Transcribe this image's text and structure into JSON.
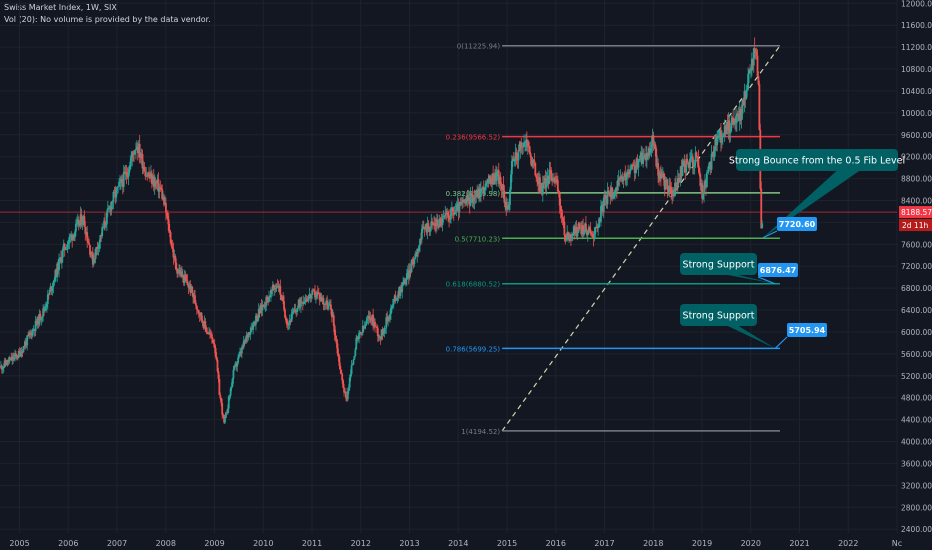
{
  "header": {
    "title": "Swiss Market Index, 1W, SIX",
    "volume_note": "Vol (20): No volume is provided by the data vendor."
  },
  "chart_data": {
    "type": "candlestick",
    "x_axis": {
      "ticks": [
        "2005",
        "2006",
        "2007",
        "2008",
        "2009",
        "2010",
        "2011",
        "2012",
        "2013",
        "2014",
        "2015",
        "2016",
        "2017",
        "2018",
        "2019",
        "2020",
        "2021",
        "2022",
        "Nc"
      ],
      "range": [
        2004.6,
        2023.0
      ]
    },
    "y_axis": {
      "ticks": [
        2400,
        2800,
        3200,
        3600,
        4000,
        4400,
        4800,
        5200,
        5600,
        6000,
        6400,
        6800,
        7200,
        7600,
        8000,
        8400,
        8800,
        9200,
        9600,
        10000,
        10400,
        10800,
        11200,
        11600,
        12000
      ],
      "tick_labels": [
        "2400.00",
        "2800.00",
        "3200.00",
        "3600.00",
        "4000.00",
        "4400.00",
        "4800.00",
        "5200.00",
        "5600.00",
        "6000.00",
        "6400.00",
        "6800.00",
        "7200.00",
        "7600.00",
        "8000.00",
        "8400.00",
        "8800.00",
        "9200.00",
        "9600.00",
        "10000.00",
        "10400.00",
        "10800.00",
        "11200.00",
        "11600.00",
        "12000.00"
      ],
      "range": [
        2330,
        12060
      ]
    },
    "price_path": [
      [
        2004.6,
        5350
      ],
      [
        2005.0,
        5600
      ],
      [
        2005.5,
        6400
      ],
      [
        2005.9,
        7500
      ],
      [
        2006.3,
        8100
      ],
      [
        2006.5,
        7300
      ],
      [
        2006.9,
        8400
      ],
      [
        2007.2,
        8900
      ],
      [
        2007.4,
        9450
      ],
      [
        2007.6,
        8900
      ],
      [
        2007.9,
        8600
      ],
      [
        2008.0,
        8200
      ],
      [
        2008.2,
        7200
      ],
      [
        2008.5,
        6800
      ],
      [
        2008.8,
        6100
      ],
      [
        2009.0,
        5800
      ],
      [
        2009.1,
        4900
      ],
      [
        2009.2,
        4300
      ],
      [
        2009.4,
        5300
      ],
      [
        2009.7,
        6000
      ],
      [
        2010.0,
        6500
      ],
      [
        2010.3,
        6900
      ],
      [
        2010.5,
        6150
      ],
      [
        2010.8,
        6600
      ],
      [
        2011.1,
        6700
      ],
      [
        2011.4,
        6400
      ],
      [
        2011.6,
        5200
      ],
      [
        2011.7,
        4750
      ],
      [
        2011.9,
        5800
      ],
      [
        2012.2,
        6300
      ],
      [
        2012.4,
        5900
      ],
      [
        2012.7,
        6600
      ],
      [
        2013.0,
        7100
      ],
      [
        2013.3,
        7900
      ],
      [
        2013.6,
        8000
      ],
      [
        2013.9,
        8200
      ],
      [
        2014.2,
        8400
      ],
      [
        2014.5,
        8600
      ],
      [
        2014.8,
        8900
      ],
      [
        2015.0,
        8300
      ],
      [
        2015.05,
        8300
      ],
      [
        2015.1,
        9100
      ],
      [
        2015.4,
        9500
      ],
      [
        2015.5,
        9150
      ],
      [
        2015.7,
        8600
      ],
      [
        2015.9,
        8900
      ],
      [
        2016.0,
        8800
      ],
      [
        2016.2,
        7700
      ],
      [
        2016.5,
        7900
      ],
      [
        2016.8,
        7800
      ],
      [
        2017.0,
        8400
      ],
      [
        2017.3,
        8700
      ],
      [
        2017.6,
        9000
      ],
      [
        2017.9,
        9300
      ],
      [
        2018.0,
        9500
      ],
      [
        2018.1,
        8900
      ],
      [
        2018.4,
        8500
      ],
      [
        2018.6,
        9000
      ],
      [
        2018.9,
        9200
      ],
      [
        2019.0,
        8500
      ],
      [
        2019.1,
        8800
      ],
      [
        2019.3,
        9500
      ],
      [
        2019.6,
        9800
      ],
      [
        2019.8,
        10000
      ],
      [
        2020.0,
        10800
      ],
      [
        2020.1,
        11226
      ],
      [
        2020.15,
        10700
      ],
      [
        2020.18,
        9500
      ],
      [
        2020.2,
        8300
      ],
      [
        2020.22,
        7720
      ],
      [
        2020.25,
        8189
      ]
    ],
    "last_price": {
      "value": 8188.57,
      "label": "8188.57",
      "time_label": "2d 11h"
    },
    "fibonacci": [
      {
        "label": "0(11225.94)",
        "value": 11225.94,
        "color": "#787b86"
      },
      {
        "label": "0.236(9566.52)",
        "value": 9566.52,
        "color": "#f23645"
      },
      {
        "label": "0.382(8539.98)",
        "value": 8539.98,
        "color": "#81c784"
      },
      {
        "label": "0.5(7710.23)",
        "value": 7710.23,
        "color": "#4caf50"
      },
      {
        "label": "0.618(6880.52)",
        "value": 6880.52,
        "color": "#089981"
      },
      {
        "label": "0.786(5699.25)",
        "value": 5699.25,
        "color": "#2196f3"
      },
      {
        "label": "1(4194.52)",
        "value": 4194.52,
        "color": "#787b86"
      }
    ],
    "fib_start_x": 2014.9,
    "fib_end_x": 2020.6,
    "trendline": {
      "from": [
        2014.9,
        4194.52
      ],
      "to": [
        2020.6,
        11225.94
      ],
      "color": "#d4d4b0"
    },
    "annotations": [
      {
        "text": "Strong Bounce from the 0.5 Fib Level",
        "price_label": "7720.60",
        "target": [
          2020.25,
          7720
        ]
      },
      {
        "text": "Strong Support",
        "price_label": "6876.47",
        "target": [
          2020.5,
          6880
        ]
      },
      {
        "text": "Strong Support",
        "price_label": "5705.94",
        "target": [
          2020.5,
          5700
        ]
      }
    ],
    "colors": {
      "up": "#26a69a",
      "down": "#ef5350",
      "background": "#131722",
      "grid": "#1e222d",
      "axis_text": "#b2b5be",
      "callout": "#006064"
    },
    "grid": true
  }
}
